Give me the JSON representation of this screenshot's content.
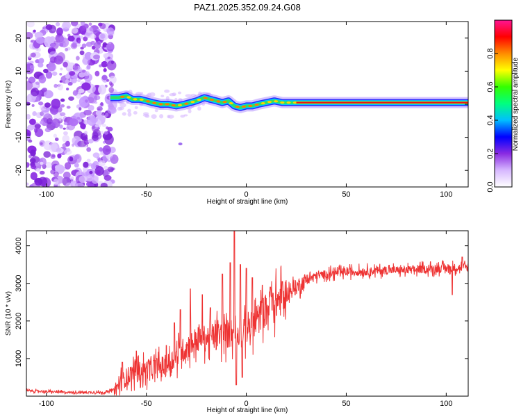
{
  "title": "PAZ1.2025.352.09.24.G08",
  "chart_data": [
    {
      "type": "heatmap",
      "xlabel": "Height of straight line (km)",
      "ylabel": "Frequency (Hz)",
      "xlim": [
        -110,
        111
      ],
      "ylim": [
        -25,
        25
      ],
      "x_ticks": [
        -100,
        -50,
        0,
        50,
        100
      ],
      "y_ticks": [
        -20,
        -10,
        0,
        10,
        20
      ],
      "colorbar": {
        "label": "Normalized spectral amplitude",
        "range": [
          0,
          1
        ],
        "ticks": [
          0.0,
          0.2,
          0.4,
          0.6,
          0.8
        ],
        "colors": [
          "#ffffff",
          "#d7b8ff",
          "#8a2be2",
          "#0000ff",
          "#00bfff",
          "#00ff7f",
          "#33ff00",
          "#ffff00",
          "#ff8c00",
          "#ff0000",
          "#ff1493"
        ]
      },
      "ridge": {
        "x": [
          -68,
          -64,
          -60,
          -57,
          -53,
          -50,
          -47,
          -43,
          -39,
          -35,
          -31,
          -28,
          -25,
          -21,
          -18,
          -15,
          -12,
          -9,
          -6,
          -3,
          0,
          3,
          6,
          10,
          14,
          18,
          22,
          26,
          30,
          111
        ],
        "y": [
          2,
          2,
          2.5,
          1.5,
          1.5,
          1,
          0.5,
          0,
          0,
          -0.5,
          0,
          0.5,
          1,
          2,
          1.5,
          1,
          0.5,
          1,
          -0.5,
          -1,
          -0.5,
          -0.5,
          0,
          0.5,
          1,
          0.5,
          0.5,
          0.5,
          0.5,
          0.5
        ],
        "strong_from_x": 25
      }
    },
    {
      "type": "line",
      "xlabel": "Height of straight line (km)",
      "ylabel": "SNR (10 * v/v)",
      "xlim": [
        -110,
        111
      ],
      "ylim": [
        0,
        4400
      ],
      "x_ticks": [
        -100,
        -50,
        0,
        50,
        100
      ],
      "y_ticks": [
        1000,
        2000,
        3000,
        4000
      ],
      "series": [
        {
          "name": "SNR",
          "color": "#ee3333",
          "x": [
            -110,
            -100,
            -90,
            -80,
            -70,
            -65,
            -62,
            -58,
            -55,
            -50,
            -45,
            -40,
            -35,
            -30,
            -25,
            -20,
            -15,
            -10,
            -5,
            0,
            5,
            10,
            15,
            20,
            25,
            30,
            35,
            40,
            50,
            60,
            70,
            80,
            90,
            100,
            105,
            111
          ],
          "values": [
            150,
            120,
            100,
            100,
            100,
            200,
            400,
            600,
            650,
            700,
            750,
            800,
            1050,
            1300,
            1500,
            1550,
            1600,
            1650,
            1700,
            1800,
            2000,
            2300,
            2500,
            2700,
            2900,
            3100,
            3200,
            3250,
            3300,
            3320,
            3350,
            3350,
            3380,
            3400,
            3420,
            3420
          ]
        }
      ],
      "spikes": [
        {
          "x": -62,
          "value": 900
        },
        {
          "x": -55,
          "value": 1200
        },
        {
          "x": -45,
          "value": 1000
        },
        {
          "x": -40,
          "value": 1350
        },
        {
          "x": -36,
          "value": 1950
        },
        {
          "x": -33,
          "value": 2300
        },
        {
          "x": -28,
          "value": 2850
        },
        {
          "x": -22,
          "value": 2700
        },
        {
          "x": -18,
          "value": 2350
        },
        {
          "x": -12,
          "value": 3250
        },
        {
          "x": -8,
          "value": 3550
        },
        {
          "x": -6,
          "value": 4450
        },
        {
          "x": -3,
          "value": 3500
        },
        {
          "x": 0,
          "value": 3400
        },
        {
          "x": 3,
          "value": 3150
        },
        {
          "x": 8,
          "value": 2950
        },
        {
          "x": 12,
          "value": 2900
        },
        {
          "x": 18,
          "value": 3050
        },
        {
          "x": 103,
          "value": 3900
        },
        {
          "x": 108,
          "value": 3700
        }
      ],
      "dips": [
        {
          "x": -5,
          "value": 300
        },
        {
          "x": -2,
          "value": 500
        },
        {
          "x": 103,
          "value": 2700
        }
      ]
    }
  ]
}
